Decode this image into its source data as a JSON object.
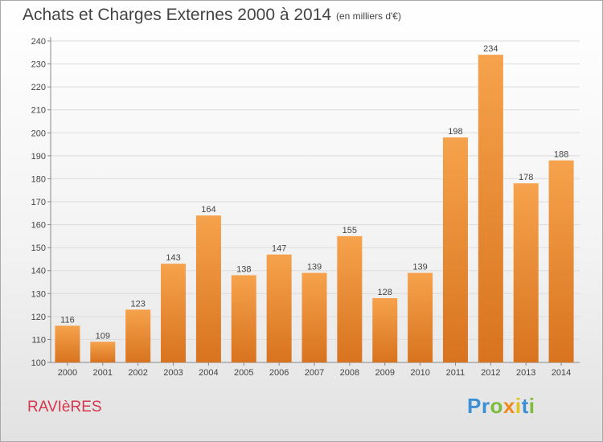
{
  "title": "Achats et Charges Externes 2000 à 2014",
  "subtitle": "(en milliers d'€)",
  "commune": "RAVIèRES",
  "logo": {
    "letters": [
      {
        "ch": "P",
        "color": "#3a8fd6"
      },
      {
        "ch": "r",
        "color": "#3a8fd6"
      },
      {
        "ch": "o",
        "color": "#7dbb3a"
      },
      {
        "ch": "x",
        "color": "#f08a1c"
      },
      {
        "ch": "i",
        "color": "#e2c21a"
      },
      {
        "ch": "t",
        "color": "#3a8fd6"
      },
      {
        "ch": "i",
        "color": "#7dbb3a"
      }
    ]
  },
  "chart_data": {
    "type": "bar",
    "title": "Achats et Charges Externes 2000 à 2014",
    "subtitle": "(en milliers d'€)",
    "xlabel": "",
    "ylabel": "",
    "categories": [
      "2000",
      "2001",
      "2002",
      "2003",
      "2004",
      "2005",
      "2006",
      "2007",
      "2008",
      "2009",
      "2010",
      "2011",
      "2012",
      "2013",
      "2014"
    ],
    "values": [
      116,
      109,
      123,
      143,
      164,
      138,
      147,
      139,
      155,
      128,
      139,
      198,
      234,
      178,
      188
    ],
    "ylim": [
      100,
      240
    ],
    "yticks": [
      100,
      110,
      120,
      130,
      140,
      150,
      160,
      170,
      180,
      190,
      200,
      210,
      220,
      230,
      240
    ],
    "grid": true,
    "legend": "none",
    "bar_color_top": "#f6a24c",
    "bar_color_bottom": "#d8731f"
  }
}
